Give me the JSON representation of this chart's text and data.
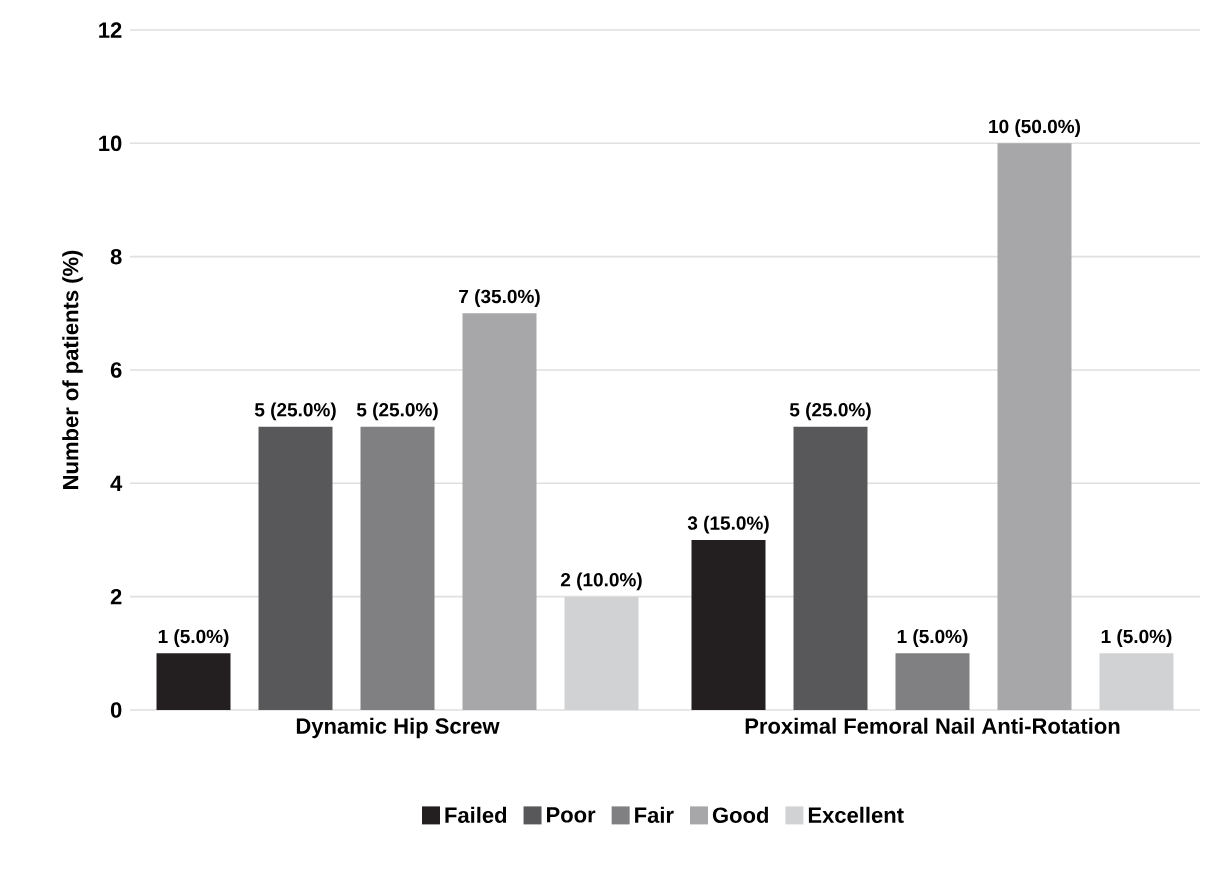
{
  "chart_data": {
    "type": "bar",
    "ylabel": "Number of patients (%)",
    "categories": [
      "Dynamic Hip Screw",
      "Proximal Femoral Nail Anti-Rotation"
    ],
    "series": [
      {
        "name": "Failed",
        "color": "#231f20",
        "values": [
          1,
          3
        ],
        "value_labels": [
          "1 (5.0%)",
          "3 (15.0%)"
        ]
      },
      {
        "name": "Poor",
        "color": "#58585a",
        "values": [
          5,
          5
        ],
        "value_labels": [
          "5 (25.0%)",
          "5 (25.0%)"
        ]
      },
      {
        "name": "Fair",
        "color": "#808083",
        "values": [
          5,
          1
        ],
        "value_labels": [
          "5 (25.0%)",
          "1 (5.0%)"
        ]
      },
      {
        "name": "Good",
        "color": "#a7a7a9",
        "values": [
          7,
          10
        ],
        "value_labels": [
          "7 (35.0%)",
          "10 (50.0%)"
        ]
      },
      {
        "name": "Excellent",
        "color": "#d1d2d4",
        "values": [
          2,
          1
        ],
        "value_labels": [
          "2 (10.0%)",
          "1 (5.0%)"
        ]
      }
    ],
    "ylim": [
      0,
      12
    ],
    "yticks": [
      0,
      2,
      4,
      6,
      8,
      10,
      12
    ],
    "grid": "y",
    "legend": "bottom"
  }
}
